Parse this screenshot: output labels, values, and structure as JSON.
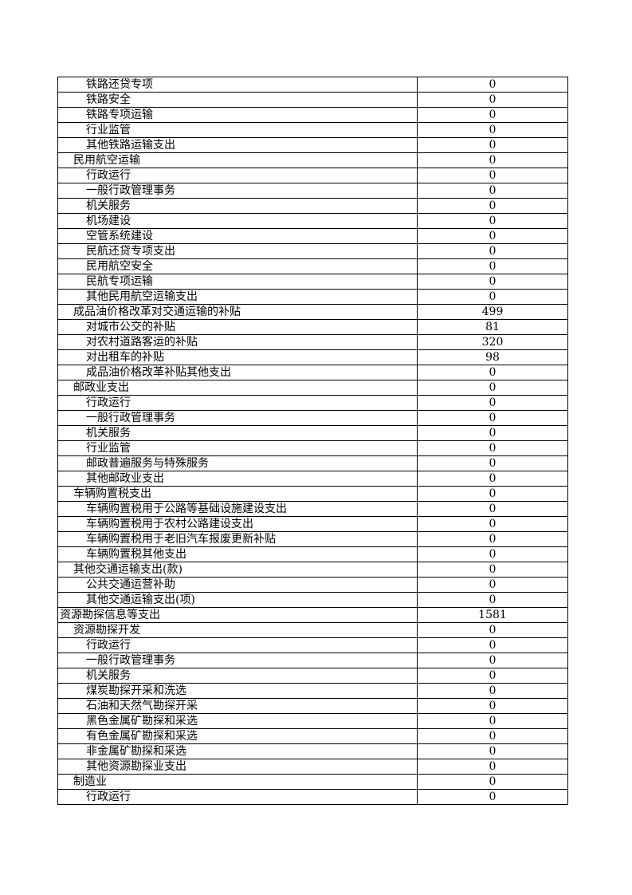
{
  "rows": [
    {
      "name": "铁路还贷专项",
      "value": "0",
      "level": 2
    },
    {
      "name": "铁路安全",
      "value": "0",
      "level": 2
    },
    {
      "name": "铁路专项运输",
      "value": "0",
      "level": 2
    },
    {
      "name": "行业监管",
      "value": "0",
      "level": 2
    },
    {
      "name": "其他铁路运输支出",
      "value": "0",
      "level": 2
    },
    {
      "name": "民用航空运输",
      "value": "0",
      "level": 1
    },
    {
      "name": "行政运行",
      "value": "0",
      "level": 2
    },
    {
      "name": "一般行政管理事务",
      "value": "0",
      "level": 2
    },
    {
      "name": "机关服务",
      "value": "0",
      "level": 2
    },
    {
      "name": "机场建设",
      "value": "0",
      "level": 2
    },
    {
      "name": "空管系统建设",
      "value": "0",
      "level": 2
    },
    {
      "name": "民航还贷专项支出",
      "value": "0",
      "level": 2
    },
    {
      "name": "民用航空安全",
      "value": "0",
      "level": 2
    },
    {
      "name": "民航专项运输",
      "value": "0",
      "level": 2
    },
    {
      "name": "其他民用航空运输支出",
      "value": "0",
      "level": 2
    },
    {
      "name": "成品油价格改革对交通运输的补贴",
      "value": "499",
      "level": 1
    },
    {
      "name": "对城市公交的补贴",
      "value": "81",
      "level": 2
    },
    {
      "name": "对农村道路客运的补贴",
      "value": "320",
      "level": 2
    },
    {
      "name": "对出租车的补贴",
      "value": "98",
      "level": 2
    },
    {
      "name": "成品油价格改革补贴其他支出",
      "value": "0",
      "level": 2
    },
    {
      "name": "邮政业支出",
      "value": "0",
      "level": 1
    },
    {
      "name": "行政运行",
      "value": "0",
      "level": 2
    },
    {
      "name": "一般行政管理事务",
      "value": "0",
      "level": 2
    },
    {
      "name": "机关服务",
      "value": "0",
      "level": 2
    },
    {
      "name": "行业监管",
      "value": "0",
      "level": 2
    },
    {
      "name": "邮政普遍服务与特殊服务",
      "value": "0",
      "level": 2
    },
    {
      "name": "其他邮政业支出",
      "value": "0",
      "level": 2
    },
    {
      "name": "车辆购置税支出",
      "value": "0",
      "level": 1
    },
    {
      "name": "车辆购置税用于公路等基础设施建设支出",
      "value": "0",
      "level": 2
    },
    {
      "name": "车辆购置税用于农村公路建设支出",
      "value": "0",
      "level": 2
    },
    {
      "name": "车辆购置税用于老旧汽车报废更新补贴",
      "value": "0",
      "level": 2
    },
    {
      "name": "车辆购置税其他支出",
      "value": "0",
      "level": 2
    },
    {
      "name": "其他交通运输支出(款)",
      "value": "0",
      "level": 1
    },
    {
      "name": "公共交通运营补助",
      "value": "0",
      "level": 2
    },
    {
      "name": "其他交通运输支出(项)",
      "value": "0",
      "level": 2
    },
    {
      "name": "资源勘探信息等支出",
      "value": "1581",
      "level": 0
    },
    {
      "name": "资源勘探开发",
      "value": "0",
      "level": 1
    },
    {
      "name": "行政运行",
      "value": "0",
      "level": 2
    },
    {
      "name": "一般行政管理事务",
      "value": "0",
      "level": 2
    },
    {
      "name": "机关服务",
      "value": "0",
      "level": 2
    },
    {
      "name": "煤炭勘探开采和洗选",
      "value": "0",
      "level": 2
    },
    {
      "name": "石油和天然气勘探开采",
      "value": "0",
      "level": 2
    },
    {
      "name": "黑色金属矿勘探和采选",
      "value": "0",
      "level": 2
    },
    {
      "name": "有色金属矿勘探和采选",
      "value": "0",
      "level": 2
    },
    {
      "name": "非金属矿勘探和采选",
      "value": "0",
      "level": 2
    },
    {
      "name": "其他资源勘探业支出",
      "value": "0",
      "level": 2
    },
    {
      "name": "制造业",
      "value": "0",
      "level": 1
    },
    {
      "name": "行政运行",
      "value": "0",
      "level": 2
    }
  ]
}
